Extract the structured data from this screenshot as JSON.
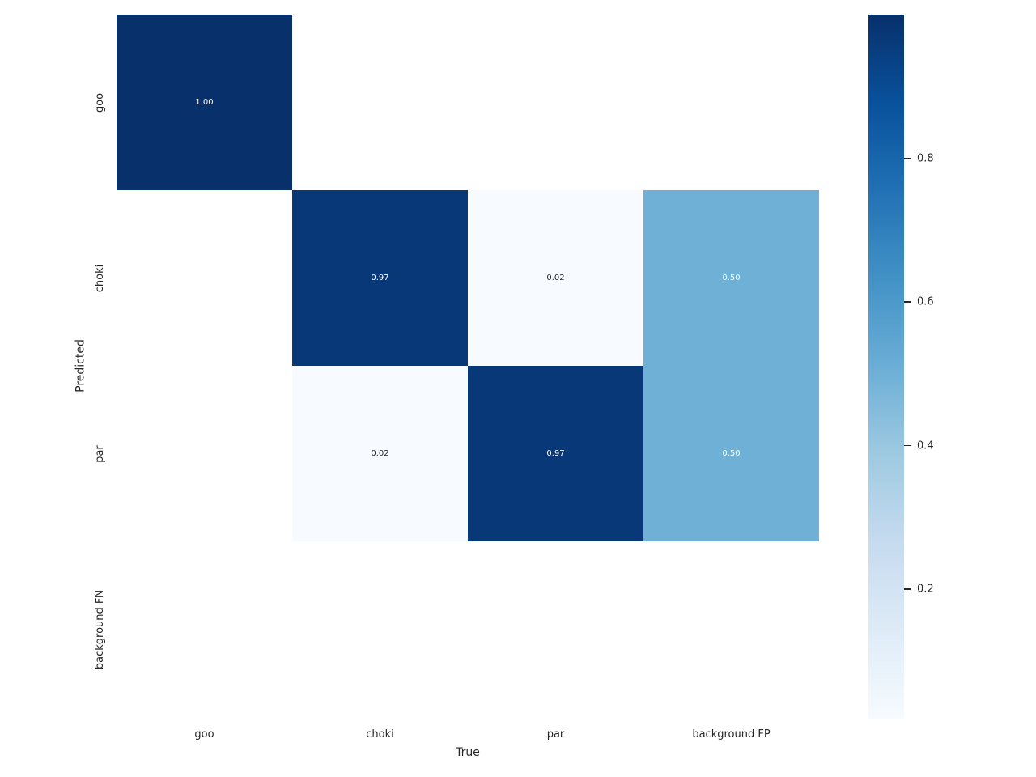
{
  "chart_data": {
    "type": "heatmap",
    "title": "",
    "xlabel": "True",
    "ylabel": "Predicted",
    "x_categories": [
      "goo",
      "choki",
      "par",
      "background FP"
    ],
    "y_categories": [
      "goo",
      "choki",
      "par",
      "background FN"
    ],
    "matrix": [
      [
        1.0,
        null,
        null,
        null
      ],
      [
        null,
        0.97,
        0.02,
        0.5
      ],
      [
        null,
        0.02,
        0.97,
        0.5
      ],
      [
        null,
        null,
        null,
        null
      ]
    ],
    "vmin": 0.02,
    "vmax": 1.0,
    "colorbar_ticks": [
      0.2,
      0.4,
      0.6,
      0.8
    ],
    "colormap": "Blues",
    "colormap_stops": [
      "#f7fbff",
      "#deebf7",
      "#c6dbef",
      "#9ecae1",
      "#6baed6",
      "#4292c6",
      "#2171b5",
      "#08519c",
      "#08306b"
    ],
    "annotation_color_light": "#ffffff",
    "annotation_color_dark": "#262626",
    "tick_color": "#262626",
    "background": "#ffffff",
    "legend_position": "right-colorbar",
    "grid": false
  }
}
